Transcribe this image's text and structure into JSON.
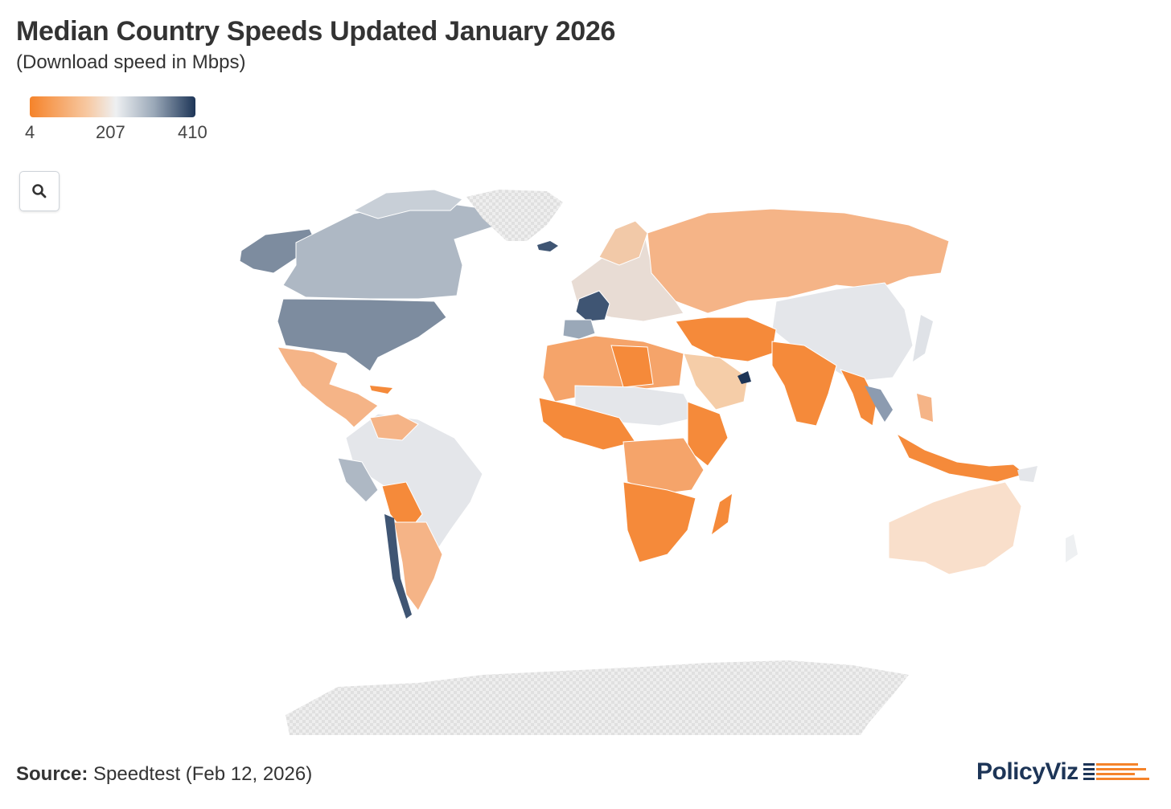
{
  "header": {
    "title": "Median Country Speeds Updated January 2026",
    "subtitle": "(Download speed in Mbps)"
  },
  "legend": {
    "min_label": "4",
    "mid_label": "207",
    "max_label": "410",
    "colors": [
      "#f5832a",
      "#f7c9a3",
      "#eef0f2",
      "#9aa8b8",
      "#1d3557"
    ]
  },
  "controls": {
    "zoom_icon": "search-icon"
  },
  "map_data": {
    "metric": "Median download speed (Mbps)",
    "no_data_color": "#e4e4e4",
    "regions": [
      {
        "name": "United States",
        "level": "high"
      },
      {
        "name": "Canada",
        "level": "mid-high"
      },
      {
        "name": "Alaska",
        "level": "high"
      },
      {
        "name": "Greenland",
        "level": "no-data"
      },
      {
        "name": "Mexico & Central America",
        "level": "low-mid"
      },
      {
        "name": "South America",
        "level": "mid"
      },
      {
        "name": "Chile",
        "level": "high"
      },
      {
        "name": "Argentina",
        "level": "low-mid"
      },
      {
        "name": "France",
        "level": "very-high"
      },
      {
        "name": "Iceland",
        "level": "very-high"
      },
      {
        "name": "Spain",
        "level": "high"
      },
      {
        "name": "Europe",
        "level": "mid"
      },
      {
        "name": "Russia & Central Asia",
        "level": "low-mid"
      },
      {
        "name": "China & Mongolia",
        "level": "mid"
      },
      {
        "name": "Middle East & South Asia",
        "level": "low"
      },
      {
        "name": "Saudi Arabia",
        "level": "low-mid"
      },
      {
        "name": "Africa",
        "level": "low"
      },
      {
        "name": "Southeast Asia",
        "level": "low"
      },
      {
        "name": "Japan",
        "level": "mid"
      },
      {
        "name": "Australia",
        "level": "mid-low"
      },
      {
        "name": "Antarctica",
        "level": "no-data"
      }
    ]
  },
  "footer": {
    "source_label": "Source:",
    "source_text": " Speedtest (Feb 12, 2026)",
    "brand": "PolicyViz",
    "brand_colors": [
      "#1d3557",
      "#f5832a"
    ]
  }
}
